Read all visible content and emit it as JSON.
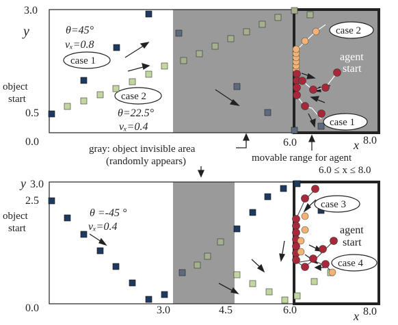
{
  "top": {
    "y_axis_label": "y",
    "x_axis_label": "x",
    "y_ticks": [
      "3.0",
      "0.5",
      "0.0"
    ],
    "x_ticks": [
      "6.0",
      "8.0"
    ],
    "case1": {
      "theta": "θ=45°",
      "vx": "vₓ=0.8",
      "label": "case 1"
    },
    "case2": {
      "label": "case 2",
      "theta": "θ=22.5°",
      "vx": "vₓ=0.4"
    },
    "object_start": [
      "object",
      "start"
    ],
    "gray_note": [
      "gray: object invisible area",
      "(randomly appears)"
    ],
    "movable_note": [
      "movable range for agent",
      "6.0 ≤ x ≤ 8.0"
    ],
    "agent_start": [
      "agent",
      "start"
    ],
    "right_case2": "case 2",
    "right_case1": "case 1"
  },
  "bottom": {
    "y_axis_label": "y",
    "x_axis_label": "x",
    "y_ticks": [
      "3.0",
      "2.5",
      "0.0"
    ],
    "x_ticks": [
      "3.0",
      "4.5",
      "6.0",
      "8.0"
    ],
    "object_start": [
      "object",
      "start"
    ],
    "theta": "θ =-45 °",
    "vx": "vₓ=0.4",
    "case3": "case 3",
    "case4": "case 4",
    "agent_start": [
      "agent",
      "start"
    ]
  },
  "colors": {
    "gray_area": "#9a9a9a",
    "dark_square": "#1f3a5f",
    "light_square": "#c2d6a0",
    "agent_dark": "#a8283a",
    "agent_light": "#f4b27a"
  }
}
